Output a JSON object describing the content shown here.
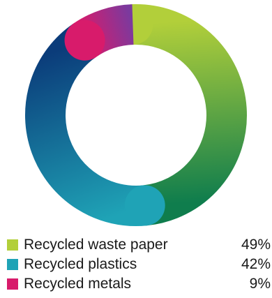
{
  "chart_data": {
    "type": "pie",
    "variant": "donut",
    "series": [
      {
        "name": "Recycled waste paper",
        "value": 49,
        "label": "49%",
        "color": "#b2cf3a"
      },
      {
        "name": "Recycled plastics",
        "value": 42,
        "label": "42%",
        "color": "#1fa3b6"
      },
      {
        "name": "Recycled metals",
        "value": 9,
        "label": "9%",
        "color": "#d81b6b"
      }
    ],
    "colors_end": {
      "Recycled waste paper": "#0f7d4d",
      "Recycled plastics": "#0b3c7a",
      "Recycled metals": "#7b3a9e"
    },
    "legend_position": "bottom"
  }
}
